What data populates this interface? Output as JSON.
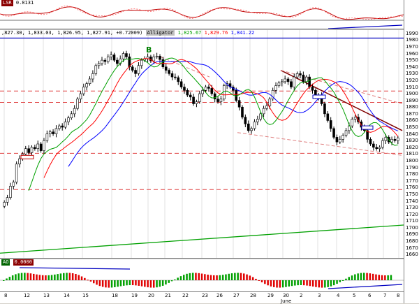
{
  "top_panel": {
    "label": "LSR",
    "value": "0.8131"
  },
  "main_panel": {
    "ohlc_label": ",827.30, 1,833.03, 1,826.95, 1,827.91, +0.72009)",
    "indicator_name": "Alligator",
    "alligator_values": [
      "1,825.67",
      "1,829.76",
      "1,841.22"
    ],
    "signal_marker": "B"
  },
  "bottom_panel": {
    "label": "AO",
    "value": "0.0000"
  },
  "price_axis": [
    "1990",
    "1980",
    "1970",
    "1960",
    "1950",
    "1940",
    "1930",
    "1920",
    "1910",
    "1900",
    "1890",
    "1880",
    "1870",
    "1860",
    "1850",
    "1840",
    "1830",
    "1820",
    "1810",
    "1800",
    "1790",
    "1780",
    "1770",
    "1760",
    "1750",
    "1740",
    "1730",
    "1720",
    "1710",
    "1700",
    "1690",
    "1680",
    "1670",
    "1660"
  ],
  "date_axis": [
    "8",
    "12",
    "13",
    "14",
    "15",
    "18",
    "19",
    "20",
    "21",
    "22",
    "23",
    "26",
    "27",
    "28",
    "29",
    "30",
    "2",
    "3",
    "4",
    "5",
    "6",
    "7",
    "8"
  ],
  "month_label": "June",
  "colors": {
    "bull": "#008000",
    "bear": "#ff0000",
    "jaw": "#0000ff",
    "teeth": "#ff0000",
    "lips": "#00a000"
  },
  "chart_data": {
    "type": "candlestick",
    "title": "",
    "ylim": [
      1655,
      1995
    ],
    "candles_close": [
      1738,
      1745,
      1762,
      1768,
      1795,
      1803,
      1810,
      1818,
      1812,
      1820,
      1818,
      1825,
      1815,
      1830,
      1840,
      1843,
      1840,
      1848,
      1852,
      1850,
      1858,
      1864,
      1870,
      1878,
      1892,
      1900,
      1910,
      1915,
      1922,
      1930,
      1942,
      1945,
      1950,
      1948,
      1955,
      1958,
      1950,
      1945,
      1952,
      1960,
      1955,
      1940,
      1935,
      1930,
      1942,
      1950,
      1952,
      1955,
      1949,
      1955,
      1956,
      1951,
      1940,
      1935,
      1930,
      1925,
      1924,
      1918,
      1910,
      1905,
      1898,
      1895,
      1885,
      1888,
      1900,
      1905,
      1910,
      1908,
      1900,
      1892,
      1888,
      1892,
      1912,
      1915,
      1910,
      1905,
      1890,
      1880,
      1865,
      1855,
      1845,
      1848,
      1858,
      1862,
      1870,
      1878,
      1882,
      1892,
      1905,
      1912,
      1916,
      1918,
      1922,
      1918,
      1910,
      1925,
      1930,
      1928,
      1918,
      1925,
      1910,
      1905,
      1895,
      1897,
      1885,
      1870,
      1860,
      1848,
      1835,
      1828,
      1832,
      1838,
      1845,
      1852,
      1862,
      1865,
      1858,
      1850,
      1845,
      1832,
      1825,
      1820,
      1818,
      1820,
      1830,
      1835,
      1828,
      1832,
      1830,
      1834
    ],
    "support_lines": [
      1904,
      1887,
      1811,
      1757
    ],
    "resistance_line": 1983
  }
}
